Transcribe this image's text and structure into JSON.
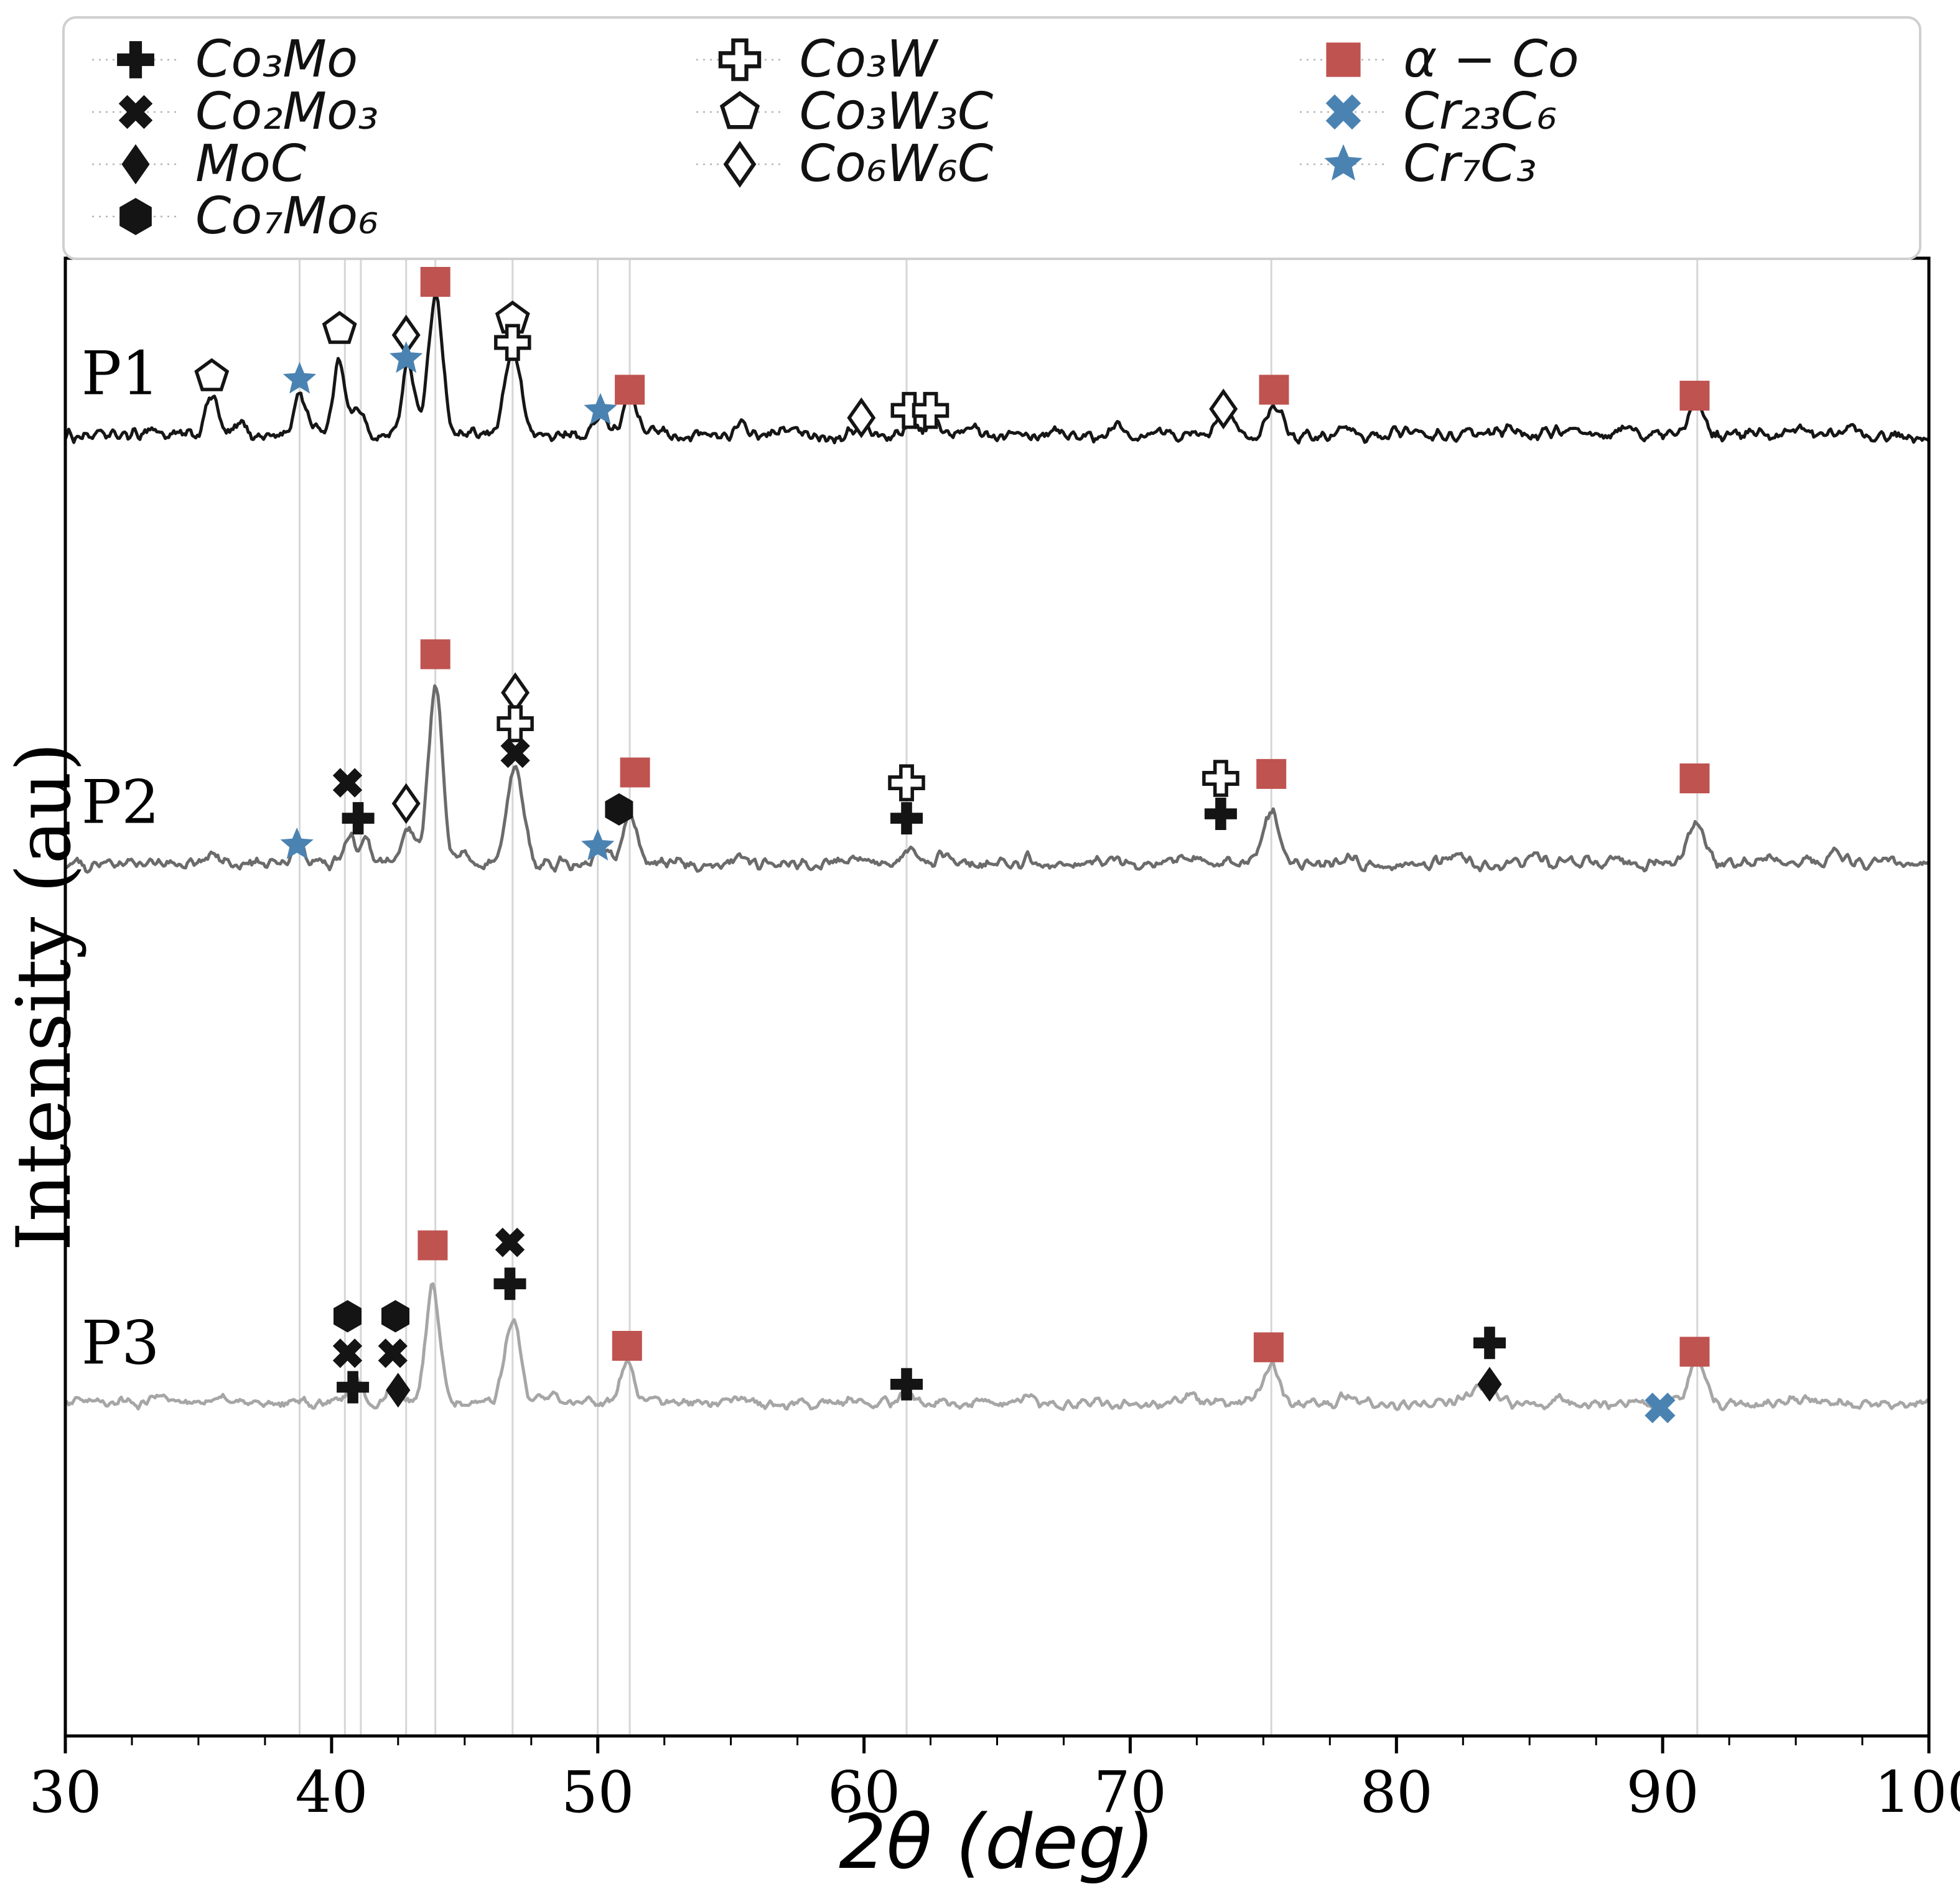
{
  "colors": {
    "black": "#141414",
    "white": "#ffffff",
    "alpha_co": "#bf5350",
    "chromium": "#4a83b2",
    "grid": "#d6d6d6",
    "legend_border": "#cfcfcf"
  },
  "legend": {
    "columns": [
      {
        "items": [
          {
            "id": "co3mo",
            "symbol": "filled-plus",
            "label": "Co₃Mo"
          },
          {
            "id": "co2mo3",
            "symbol": "filled-x",
            "label": "Co₂Mo₃"
          },
          {
            "id": "moc",
            "symbol": "filled-diamond",
            "label": "MoC"
          },
          {
            "id": "co7mo6",
            "symbol": "filled-hexagon",
            "label": "Co₇Mo₆"
          }
        ]
      },
      {
        "items": [
          {
            "id": "co3w",
            "symbol": "open-plus",
            "label": "Co₃W"
          },
          {
            "id": "co3w3c",
            "symbol": "open-pentagon",
            "label": "Co₃W₃C"
          },
          {
            "id": "co6w6c",
            "symbol": "open-diamond",
            "label": "Co₆W₆C"
          }
        ]
      },
      {
        "items": [
          {
            "id": "alpha-co",
            "symbol": "red-square",
            "label": "α − Co"
          },
          {
            "id": "cr23c6",
            "symbol": "blue-x",
            "label": "Cr₂₃C₆"
          },
          {
            "id": "cr7c3",
            "symbol": "blue-star",
            "label": "Cr₇C₃"
          }
        ]
      }
    ]
  },
  "chart_data": {
    "type": "line",
    "xlabel": "2θ (deg)",
    "ylabel": "Intensity (au)",
    "xlim": [
      30,
      100
    ],
    "ylim": [
      0,
      1000
    ],
    "x_ticks": [
      30,
      40,
      50,
      60,
      70,
      80,
      90,
      100
    ],
    "x_minor_tick_step": 2.5,
    "grid_x": [
      38.8,
      40.5,
      41.1,
      42.8,
      43.9,
      46.8,
      50.0,
      51.2,
      61.6,
      75.3,
      91.3
    ],
    "series": [
      {
        "name": "P1",
        "color": "#161616",
        "baseline": 880,
        "noise": 3.5,
        "label_x": 30.6,
        "label_y": 908,
        "peaks": [
          [
            33.2,
            5,
            0.25
          ],
          [
            35.5,
            28,
            0.22
          ],
          [
            36.6,
            8,
            0.2
          ],
          [
            38.8,
            30,
            0.2
          ],
          [
            39.4,
            8,
            0.2
          ],
          [
            40.3,
            52,
            0.22
          ],
          [
            41.0,
            18,
            0.2
          ],
          [
            42.9,
            48,
            0.24
          ],
          [
            43.9,
            95,
            0.26
          ],
          [
            46.8,
            58,
            0.3
          ],
          [
            50.1,
            16,
            0.22
          ],
          [
            51.2,
            26,
            0.26
          ],
          [
            52.1,
            8,
            0.2
          ],
          [
            55.4,
            6,
            0.25
          ],
          [
            57.2,
            5,
            0.25
          ],
          [
            59.9,
            8,
            0.25
          ],
          [
            61.8,
            10,
            0.22
          ],
          [
            62.6,
            10,
            0.22
          ],
          [
            64.1,
            5,
            0.25
          ],
          [
            65.7,
            6,
            0.25
          ],
          [
            67.2,
            5,
            0.25
          ],
          [
            69.5,
            6,
            0.3
          ],
          [
            71.1,
            5,
            0.3
          ],
          [
            73.6,
            14,
            0.3
          ],
          [
            75.4,
            22,
            0.3
          ],
          [
            78.0,
            5,
            0.3
          ],
          [
            80.2,
            4,
            0.3
          ],
          [
            84.4,
            5,
            0.3
          ],
          [
            86.1,
            4,
            0.3
          ],
          [
            88.7,
            5,
            0.3
          ],
          [
            91.2,
            22,
            0.28
          ],
          [
            93.6,
            4,
            0.3
          ],
          [
            95.3,
            5,
            0.3
          ],
          [
            97.1,
            4,
            0.3
          ]
        ]
      },
      {
        "name": "P2",
        "color": "#6b6b6b",
        "baseline": 590,
        "noise": 3.5,
        "label_x": 30.6,
        "label_y": 618,
        "peaks": [
          [
            35.6,
            6,
            0.25
          ],
          [
            38.8,
            14,
            0.2
          ],
          [
            40.7,
            18,
            0.22
          ],
          [
            41.3,
            13,
            0.2
          ],
          [
            42.9,
            24,
            0.22
          ],
          [
            43.9,
            120,
            0.26
          ],
          [
            45.0,
            8,
            0.2
          ],
          [
            46.9,
            65,
            0.3
          ],
          [
            50.1,
            13,
            0.22
          ],
          [
            51.2,
            34,
            0.28
          ],
          [
            55.3,
            5,
            0.25
          ],
          [
            59.8,
            4,
            0.3
          ],
          [
            61.7,
            10,
            0.28
          ],
          [
            63.1,
            5,
            0.3
          ],
          [
            66.2,
            4,
            0.3
          ],
          [
            69.3,
            4,
            0.3
          ],
          [
            72.1,
            4,
            0.3
          ],
          [
            75.3,
            34,
            0.32
          ],
          [
            78.2,
            4,
            0.3
          ],
          [
            82.3,
            5,
            0.3
          ],
          [
            85.2,
            4,
            0.3
          ],
          [
            88.1,
            4,
            0.3
          ],
          [
            91.3,
            30,
            0.3
          ],
          [
            94.0,
            4,
            0.3
          ],
          [
            96.5,
            7,
            0.35
          ],
          [
            98.5,
            5,
            0.3
          ]
        ]
      },
      {
        "name": "P3",
        "color": "#a6a6a6",
        "baseline": 225,
        "noise": 3,
        "label_x": 30.6,
        "label_y": 252,
        "peaks": [
          [
            33.5,
            5,
            0.3
          ],
          [
            36.0,
            4,
            0.3
          ],
          [
            40.9,
            20,
            0.25
          ],
          [
            42.4,
            11,
            0.22
          ],
          [
            43.8,
            80,
            0.26
          ],
          [
            46.8,
            55,
            0.3
          ],
          [
            48.1,
            6,
            0.25
          ],
          [
            51.1,
            26,
            0.28
          ],
          [
            55.2,
            5,
            0.3
          ],
          [
            59.7,
            4,
            0.3
          ],
          [
            61.6,
            9,
            0.28
          ],
          [
            66.1,
            4,
            0.3
          ],
          [
            72.2,
            4,
            0.3
          ],
          [
            75.3,
            25,
            0.32
          ],
          [
            78.1,
            4,
            0.3
          ],
          [
            83.3,
            13,
            0.45
          ],
          [
            86.2,
            4,
            0.3
          ],
          [
            91.3,
            28,
            0.3
          ],
          [
            95.1,
            4,
            0.3
          ]
        ]
      }
    ],
    "markers": [
      {
        "x": 35.5,
        "y": 920,
        "symbol": "open-pentagon"
      },
      {
        "x": 38.8,
        "y": 918,
        "symbol": "blue-star"
      },
      {
        "x": 40.3,
        "y": 952,
        "symbol": "open-pentagon"
      },
      {
        "x": 42.8,
        "y": 948,
        "symbol": "open-diamond"
      },
      {
        "x": 42.8,
        "y": 932,
        "symbol": "blue-star"
      },
      {
        "x": 43.9,
        "y": 984,
        "symbol": "red-square"
      },
      {
        "x": 46.8,
        "y": 959,
        "symbol": "open-pentagon"
      },
      {
        "x": 46.8,
        "y": 943,
        "symbol": "open-plus"
      },
      {
        "x": 50.1,
        "y": 897,
        "symbol": "blue-star"
      },
      {
        "x": 51.2,
        "y": 911,
        "symbol": "red-square"
      },
      {
        "x": 59.9,
        "y": 892,
        "symbol": "open-diamond"
      },
      {
        "x": 61.7,
        "y": 897,
        "symbol": "open-plus"
      },
      {
        "x": 62.5,
        "y": 897,
        "symbol": "open-plus"
      },
      {
        "x": 73.5,
        "y": 898,
        "symbol": "open-diamond"
      },
      {
        "x": 75.4,
        "y": 911,
        "symbol": "red-square"
      },
      {
        "x": 91.2,
        "y": 907,
        "symbol": "red-square"
      },
      {
        "x": 38.7,
        "y": 603,
        "symbol": "blue-star"
      },
      {
        "x": 40.6,
        "y": 645,
        "symbol": "filled-x"
      },
      {
        "x": 41.0,
        "y": 621,
        "symbol": "filled-plus"
      },
      {
        "x": 42.8,
        "y": 631,
        "symbol": "open-diamond"
      },
      {
        "x": 43.9,
        "y": 732,
        "symbol": "red-square"
      },
      {
        "x": 46.9,
        "y": 706,
        "symbol": "open-diamond"
      },
      {
        "x": 46.9,
        "y": 685,
        "symbol": "open-plus"
      },
      {
        "x": 46.9,
        "y": 665,
        "symbol": "filled-x"
      },
      {
        "x": 50.0,
        "y": 602,
        "symbol": "blue-star"
      },
      {
        "x": 50.8,
        "y": 627,
        "symbol": "filled-hexagon"
      },
      {
        "x": 51.4,
        "y": 652,
        "symbol": "red-square"
      },
      {
        "x": 61.6,
        "y": 645,
        "symbol": "open-plus"
      },
      {
        "x": 61.6,
        "y": 621,
        "symbol": "filled-plus"
      },
      {
        "x": 73.4,
        "y": 648,
        "symbol": "open-plus"
      },
      {
        "x": 73.4,
        "y": 624,
        "symbol": "filled-plus"
      },
      {
        "x": 75.3,
        "y": 651,
        "symbol": "red-square"
      },
      {
        "x": 91.2,
        "y": 648,
        "symbol": "red-square"
      },
      {
        "x": 40.6,
        "y": 284,
        "symbol": "filled-hexagon"
      },
      {
        "x": 40.6,
        "y": 259,
        "symbol": "filled-x"
      },
      {
        "x": 40.8,
        "y": 236,
        "symbol": "filled-plus"
      },
      {
        "x": 42.4,
        "y": 284,
        "symbol": "filled-hexagon"
      },
      {
        "x": 42.3,
        "y": 259,
        "symbol": "filled-x"
      },
      {
        "x": 42.5,
        "y": 234,
        "symbol": "filled-diamond"
      },
      {
        "x": 43.8,
        "y": 332,
        "symbol": "red-square"
      },
      {
        "x": 46.7,
        "y": 334,
        "symbol": "filled-x"
      },
      {
        "x": 46.7,
        "y": 306,
        "symbol": "filled-plus"
      },
      {
        "x": 51.1,
        "y": 264,
        "symbol": "red-square"
      },
      {
        "x": 61.6,
        "y": 238,
        "symbol": "filled-plus"
      },
      {
        "x": 75.2,
        "y": 263,
        "symbol": "red-square"
      },
      {
        "x": 83.5,
        "y": 266,
        "symbol": "filled-plus"
      },
      {
        "x": 83.5,
        "y": 238,
        "symbol": "filled-diamond"
      },
      {
        "x": 89.9,
        "y": 222,
        "symbol": "blue-x"
      },
      {
        "x": 91.2,
        "y": 260,
        "symbol": "red-square"
      }
    ]
  }
}
